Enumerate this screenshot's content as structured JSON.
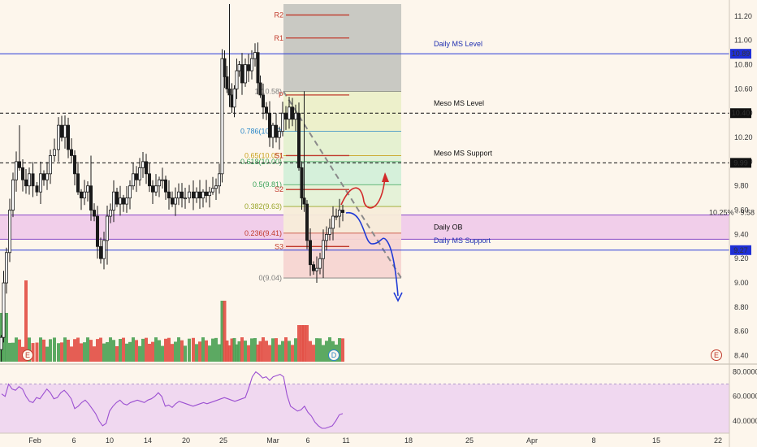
{
  "chart_data": {
    "type": "candlestick",
    "x_ticks": [
      "Feb",
      "6",
      "10",
      "14",
      "20",
      "25",
      "Mar",
      "6",
      "11",
      "18",
      "25",
      "Apr",
      "8",
      "15",
      "22"
    ],
    "y_ticks": [
      "11.20",
      "11.00",
      "10.80",
      "10.60",
      "10.40",
      "10.20",
      "10.00",
      "9.80",
      "9.60",
      "9.40",
      "9.20",
      "9.00",
      "8.80",
      "8.60",
      "8.40"
    ],
    "y_range": [
      8.35,
      11.3
    ],
    "price_labels": [
      {
        "value": 10.89,
        "text": "10.89",
        "bg": "#1f2fd6",
        "fg": "#ffffff"
      },
      {
        "value": 10.4,
        "text": "10.40",
        "bg": "#111111",
        "fg": "#ffffff"
      },
      {
        "value": 9.99,
        "text": "9.99",
        "bg": "#111111",
        "fg": "#ffffff"
      },
      {
        "value": 9.27,
        "text": "9.27",
        "bg": "#1f2fd6",
        "fg": "#ffffff"
      },
      {
        "value": 9.58,
        "text": "10.25% · 9.58",
        "bg": "#fdf6ec",
        "fg": "#333333"
      }
    ],
    "levels": [
      {
        "name": "Daily MS Level",
        "value": 10.89,
        "color": "#2a3bd8",
        "style": "solid",
        "label_color": "#1f2fb0"
      },
      {
        "name": "Meso MS Level",
        "value": 10.4,
        "color": "#111111",
        "style": "dashed",
        "label_color": "#111111"
      },
      {
        "name": "Meso MS Support",
        "value": 9.99,
        "color": "#111111",
        "style": "dashed",
        "label_color": "#111111"
      },
      {
        "name": "Daily MS Support",
        "value": 9.27,
        "color": "#2a3bd8",
        "style": "solid",
        "label_color": "#1f2fb0"
      }
    ],
    "zones": [
      {
        "name": "Daily OB",
        "from": 9.36,
        "to": 9.56,
        "color": "#efc7ea"
      }
    ],
    "fib": {
      "high": 10.58,
      "low": 9.04,
      "levels": [
        {
          "label": "1(10.58)",
          "value": 10.58,
          "color": "#7d7d7d"
        },
        {
          "label": "0.786(10.25)",
          "value": 10.25,
          "color": "#2a87c8"
        },
        {
          "label": "0.65(10.05)",
          "value": 10.05,
          "color": "#c8a21e"
        },
        {
          "label": "0.618(10.00)",
          "value": 10.0,
          "color": "#3aa35a"
        },
        {
          "label": "0.5(9.81)",
          "value": 9.81,
          "color": "#3aa35a"
        },
        {
          "label": "0.382(9.63)",
          "value": 9.63,
          "color": "#9aa62a"
        },
        {
          "label": "0.236(9.41)",
          "value": 9.41,
          "color": "#c0392b"
        },
        {
          "label": "0(9.04)",
          "value": 9.04,
          "color": "#7d7d7d"
        }
      ]
    },
    "pivots": [
      {
        "label": "R2",
        "value": 11.21
      },
      {
        "label": "R1",
        "value": 11.02
      },
      {
        "label": "P",
        "value": 10.55
      },
      {
        "label": "S1",
        "value": 10.05
      },
      {
        "label": "S2",
        "value": 9.77
      },
      {
        "label": "S3",
        "value": 9.3
      }
    ],
    "rsi": {
      "ticks": [
        "80.0000",
        "60.0000",
        "40.0000"
      ],
      "range": [
        30,
        85
      ],
      "band": [
        30,
        70
      ],
      "values": [
        62,
        60,
        70,
        66,
        65,
        68,
        66,
        60,
        56,
        55,
        59,
        58,
        62,
        66,
        63,
        58,
        59,
        63,
        65,
        62,
        58,
        50,
        52,
        55,
        57,
        54,
        50,
        46,
        40,
        36,
        38,
        48,
        52,
        55,
        57,
        54,
        53,
        55,
        56,
        57,
        56,
        55,
        57,
        58,
        60,
        63,
        60,
        52,
        53,
        51,
        54,
        56,
        55,
        54,
        53,
        52,
        53,
        54,
        55,
        54,
        55,
        56,
        57,
        58,
        59,
        58,
        57,
        56,
        57,
        58,
        59,
        67,
        76,
        80,
        78,
        75,
        76,
        73,
        76,
        77,
        78,
        76,
        61,
        52,
        50,
        48,
        49,
        52,
        47,
        44,
        39,
        36,
        34,
        34,
        35,
        36,
        40,
        45,
        46
      ]
    },
    "events": [
      "E",
      "D",
      "E"
    ]
  }
}
